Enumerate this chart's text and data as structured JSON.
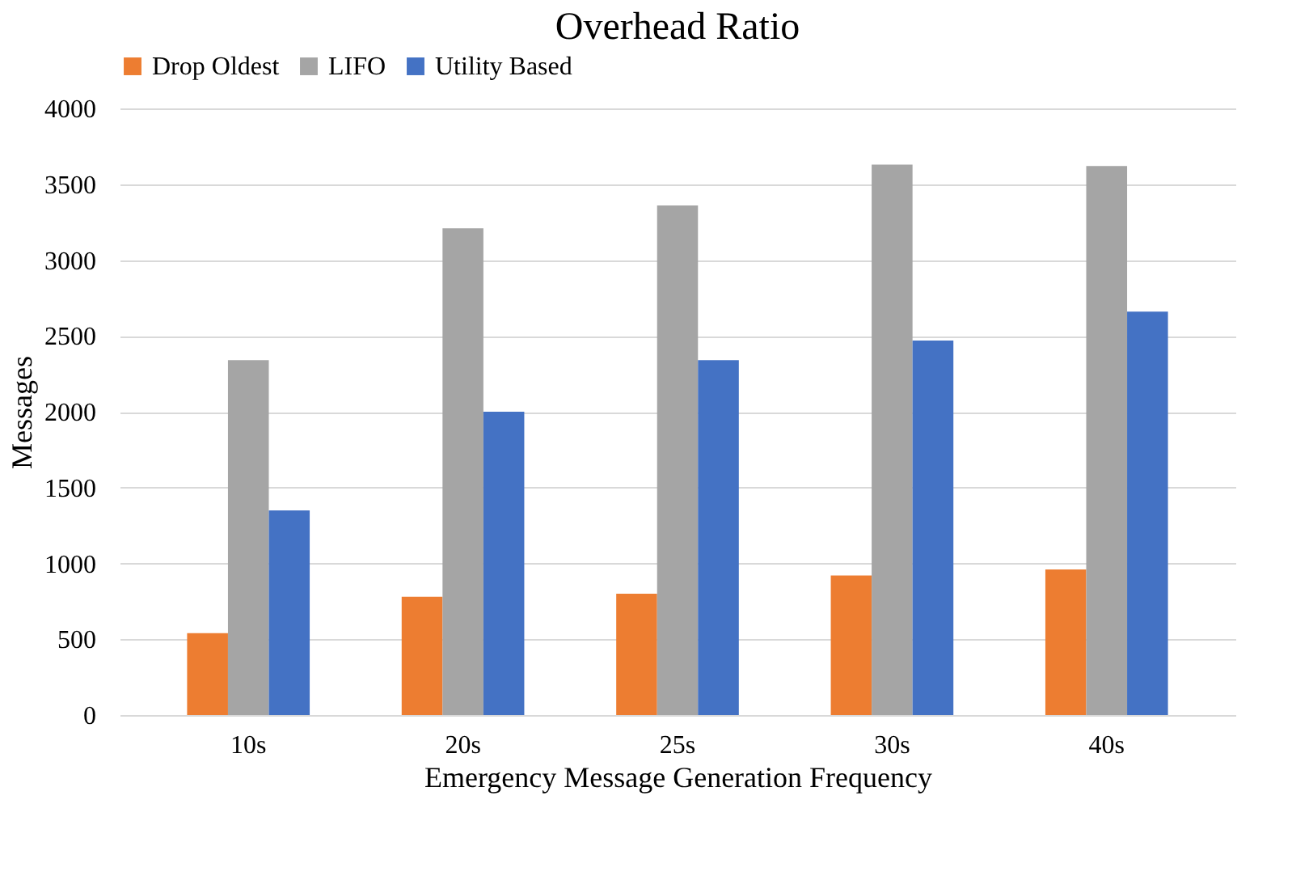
{
  "chart_data": {
    "type": "bar",
    "title": "Overhead Ratio",
    "xlabel": "Emergency Message Generation Frequency",
    "ylabel": "Messages",
    "categories": [
      "10s",
      "20s",
      "25s",
      "30s",
      "40s"
    ],
    "series": [
      {
        "name": "Drop Oldest",
        "color": "#ed7d31",
        "values": [
          540,
          780,
          800,
          920,
          960
        ]
      },
      {
        "name": "LIFO",
        "color": "#a5a5a5",
        "values": [
          2340,
          3210,
          3360,
          3630,
          3620
        ]
      },
      {
        "name": "Utility Based",
        "color": "#4472c4",
        "values": [
          1350,
          2000,
          2340,
          2470,
          2660
        ]
      }
    ],
    "ylim": [
      0,
      4000
    ],
    "yticks": [
      0,
      500,
      1000,
      1500,
      2000,
      2500,
      3000,
      3500,
      4000
    ],
    "grid": "y",
    "legend": "top"
  }
}
